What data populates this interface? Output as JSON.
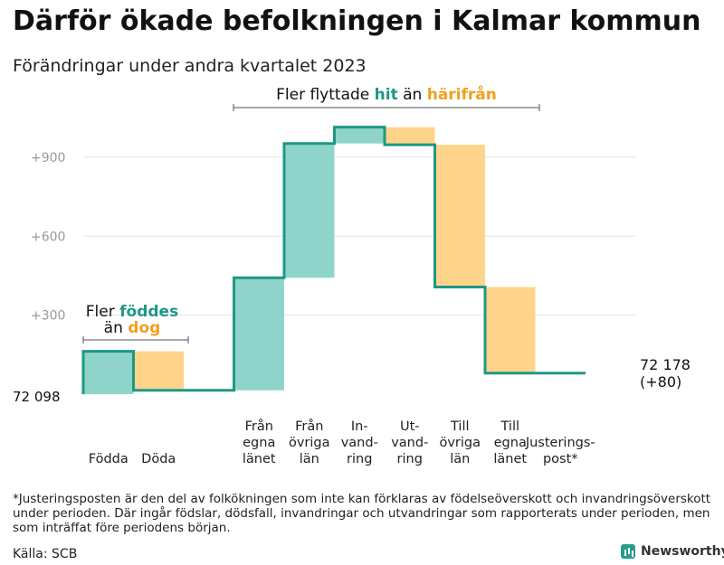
{
  "title": "Därför ökade befolkningen i Kalmar kommun",
  "subtitle": "Förändringar under andra kvartalet 2023",
  "footnote": "*Justeringsposten är den del av folkökningen som inte kan förklaras av födelseöverskott och invandringsöverskott under perioden. Där ingår födslar, dödsfall, invandringar och utvandringar som rapporterats under perioden, men som inträffat före periodens början.",
  "source": "Källa: SCB",
  "brand": "Newsworthy",
  "colors": {
    "increase": "#8fd4ca",
    "decrease": "#fdd48a",
    "line": "#1e9884",
    "grid": "#e4e4e4",
    "accent_green": "#1e9884",
    "accent_orange": "#f0a01e"
  },
  "chart_data": {
    "type": "waterfall",
    "baseline": 72098,
    "baseline_label": "72 098",
    "ylim": [
      -10,
      1030
    ],
    "yticks": [
      300,
      600,
      900
    ],
    "ytick_labels": [
      "+300",
      "+600",
      "+900"
    ],
    "grid": true,
    "steps": [
      {
        "label": [
          "Födda"
        ],
        "change": 163,
        "kind": "increase"
      },
      {
        "label": [
          "Döda"
        ],
        "change": -148,
        "kind": "decrease"
      },
      {
        "label": [
          ""
        ],
        "change": 0,
        "kind": "spacer"
      },
      {
        "label": [
          "Från",
          "egna",
          "länet"
        ],
        "change": 427,
        "kind": "increase"
      },
      {
        "label": [
          "Från",
          "övriga",
          "län"
        ],
        "change": 510,
        "kind": "increase"
      },
      {
        "label": [
          "In-",
          "vand-",
          "ring"
        ],
        "change": 62,
        "kind": "increase"
      },
      {
        "label": [
          "Ut-",
          "vand-",
          "ring"
        ],
        "change": -67,
        "kind": "decrease"
      },
      {
        "label": [
          "Till",
          "övriga",
          "län"
        ],
        "change": -540,
        "kind": "decrease"
      },
      {
        "label": [
          "Till",
          "egna",
          "länet"
        ],
        "change": -327,
        "kind": "decrease"
      },
      {
        "label": [
          "Justerings-",
          "post*"
        ],
        "change": 0,
        "kind": "adjustment"
      }
    ],
    "end_value_label": "72 178",
    "end_change_label": "(+80)",
    "annotations": {
      "births": {
        "prefix": "Fler",
        "highlight1": "föddes",
        "middle": "än",
        "highlight2": "dog"
      },
      "migration": {
        "prefix": "Fler flyttade",
        "highlight1": "hit",
        "middle": "än",
        "highlight2": "härifrån"
      }
    }
  }
}
